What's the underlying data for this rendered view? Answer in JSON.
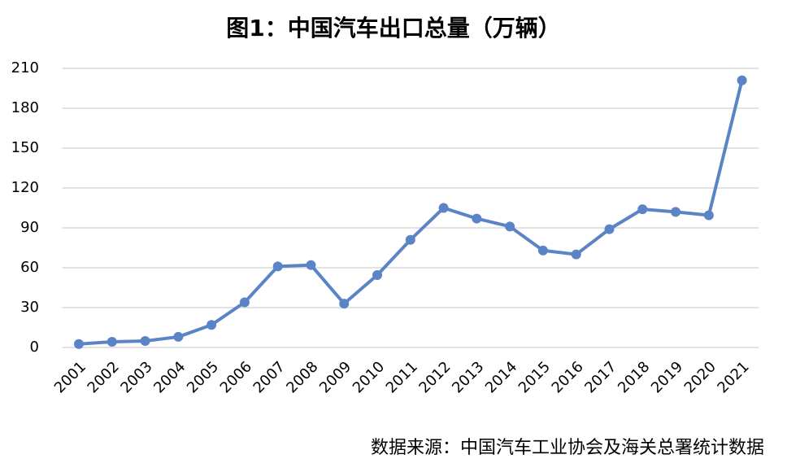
{
  "chart_data": {
    "type": "line",
    "title": "图1：中国汽车出口总量（万辆）",
    "categories": [
      "2001",
      "2002",
      "2003",
      "2004",
      "2005",
      "2006",
      "2007",
      "2008",
      "2009",
      "2010",
      "2011",
      "2012",
      "2013",
      "2014",
      "2015",
      "2016",
      "2017",
      "2018",
      "2019",
      "2020",
      "2021"
    ],
    "series": [
      {
        "name": "中国汽车出口总量",
        "color": "#5b84c6",
        "values": [
          2.6,
          4.3,
          4.9,
          8,
          17,
          34,
          61,
          62,
          33,
          54.5,
          81,
          105,
          97,
          91,
          73,
          70,
          89,
          104,
          102,
          99.5,
          201
        ]
      }
    ],
    "ylim": [
      0,
      210
    ],
    "yticks": [
      0,
      30,
      60,
      90,
      120,
      150,
      180,
      210
    ],
    "grid": true,
    "source": "数据来源：中国汽车工业协会及海关总署统计数据"
  }
}
